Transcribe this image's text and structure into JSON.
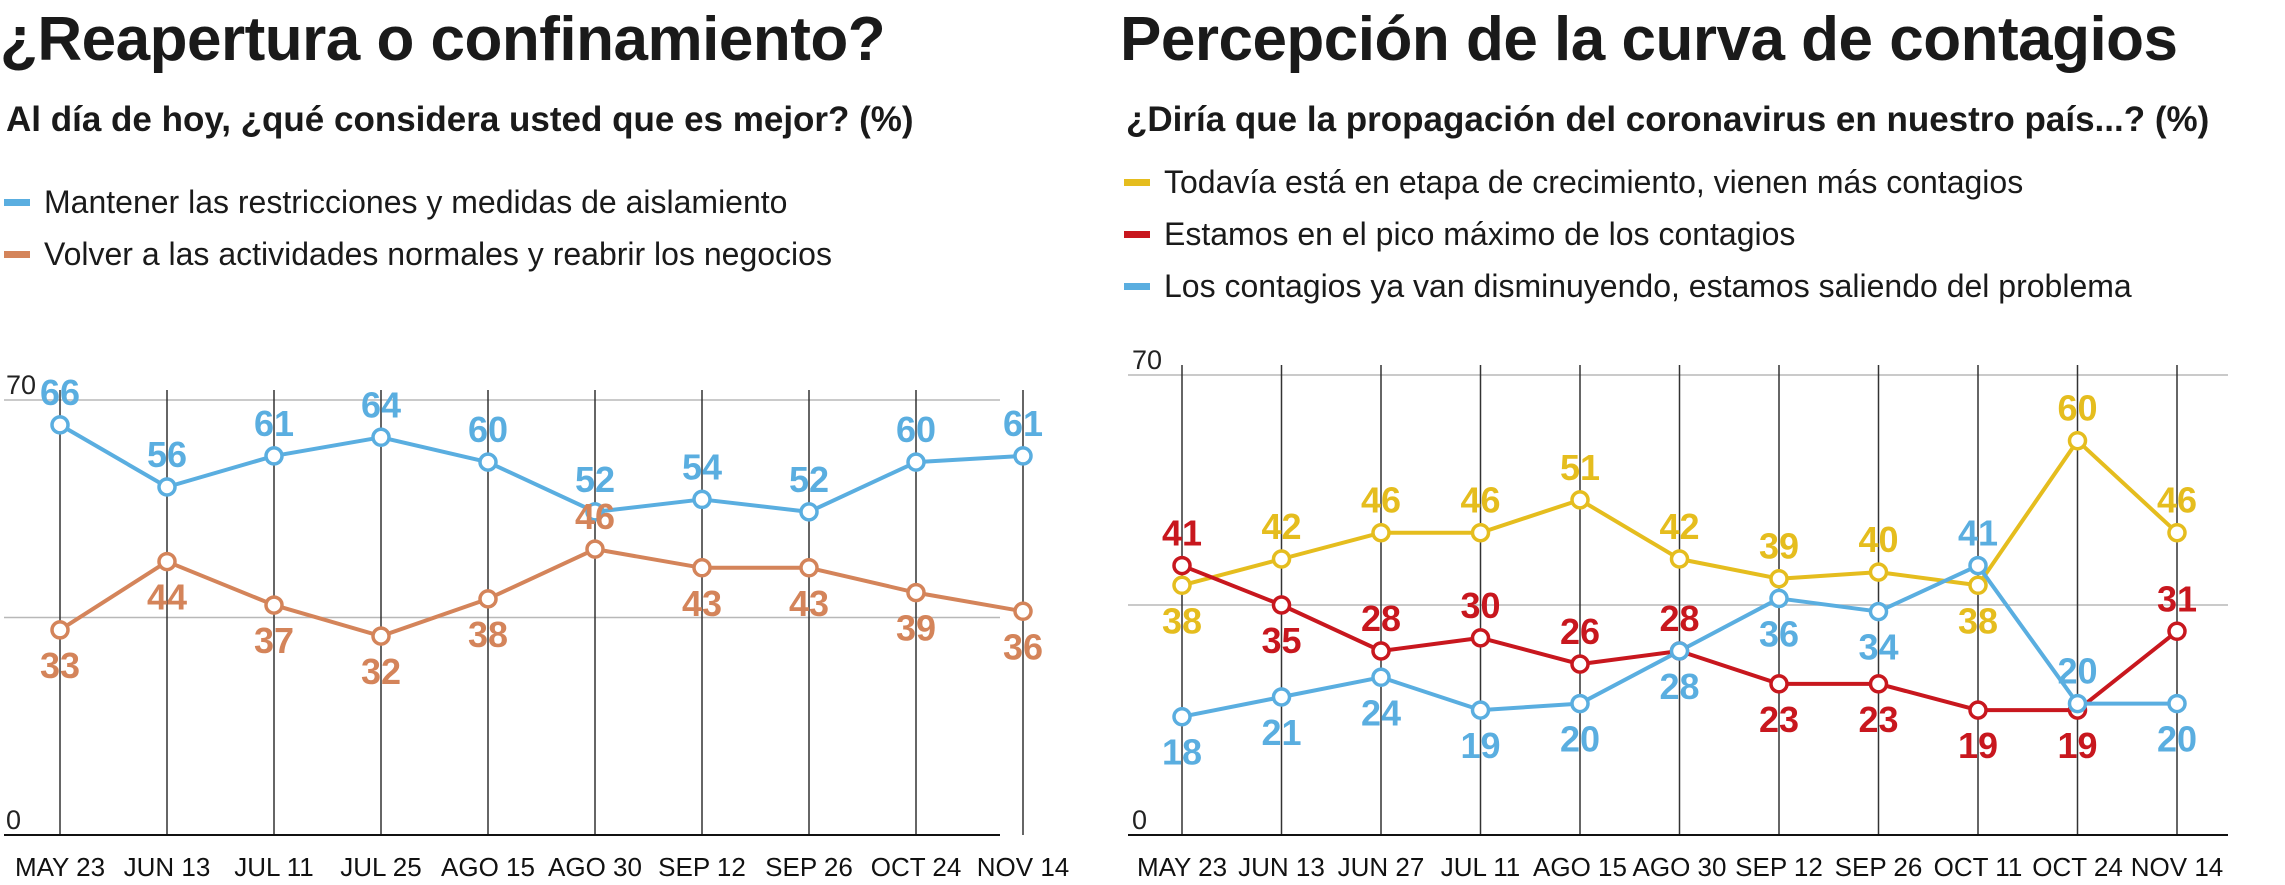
{
  "chart_data": [
    {
      "type": "line",
      "title": "¿Reapertura o confinamiento?",
      "subtitle": "Al día de hoy, ¿qué considera usted que es mejor?  (%)",
      "ylim": [
        0,
        70
      ],
      "yticks": [
        "70",
        "0"
      ],
      "categories": [
        "MAY 23",
        "JUN 13",
        "JUL 11",
        "JUL 25",
        "AGO 15",
        "AGO 30",
        "SEP 12",
        "SEP 26",
        "OCT 24",
        "NOV 14"
      ],
      "series": [
        {
          "name": "Mantener las restricciones y medidas de aislamiento",
          "color": "#5aaee0",
          "values": [
            66,
            56,
            61,
            64,
            60,
            52,
            54,
            52,
            60,
            61
          ],
          "labels": [
            "66",
            "56",
            "61",
            "64",
            "60",
            "52",
            "54",
            "52",
            "60",
            "61"
          ]
        },
        {
          "name": "Volver a las actividades normales y reabrir los negocios",
          "color": "#d4845a",
          "values": [
            33,
            44,
            37,
            32,
            38,
            46,
            43,
            43,
            39,
            36
          ],
          "labels": [
            "33",
            "44",
            "37",
            "32",
            "38",
            "46",
            "43",
            "43",
            "39",
            "36"
          ]
        }
      ]
    },
    {
      "type": "line",
      "title": "Percepción de la curva de contagios",
      "subtitle": "¿Diría que la propagación del coronavirus en nuestro país...? (%)",
      "ylim": [
        0,
        70
      ],
      "yticks": [
        "70",
        "0"
      ],
      "categories": [
        "MAY 23",
        "JUN 13",
        "JUN 27",
        "JUL 11",
        "AGO 15",
        "AGO 30",
        "SEP 12",
        "SEP 26",
        "OCT 11",
        "OCT 24",
        "NOV 14"
      ],
      "series": [
        {
          "name": "Todavía está en etapa de crecimiento, vienen más contagios",
          "color": "#e5bd1e",
          "values": [
            38,
            42,
            46,
            46,
            51,
            42,
            39,
            40,
            38,
            60,
            46
          ],
          "labels": [
            "38",
            "42",
            "46",
            "46",
            "51",
            "42",
            "39",
            "40",
            "38",
            "60",
            "46"
          ]
        },
        {
          "name": "Estamos en el pico máximo de los contagios",
          "color": "#c8171e",
          "values": [
            41,
            35,
            28,
            30,
            26,
            28,
            23,
            23,
            19,
            19,
            31
          ],
          "labels": [
            "41",
            "35",
            "28",
            "30",
            "26",
            "28",
            "23",
            "23",
            "19",
            "19",
            "31"
          ]
        },
        {
          "name": "Los contagios ya van disminuyendo, estamos saliendo del problema",
          "color": "#5aaee0",
          "values": [
            18,
            21,
            24,
            19,
            20,
            28,
            36,
            34,
            41,
            20,
            20
          ],
          "labels": [
            "18",
            "21",
            "24",
            "19",
            "20",
            "28",
            "36",
            "34",
            "41",
            "20",
            "20"
          ]
        }
      ]
    }
  ]
}
